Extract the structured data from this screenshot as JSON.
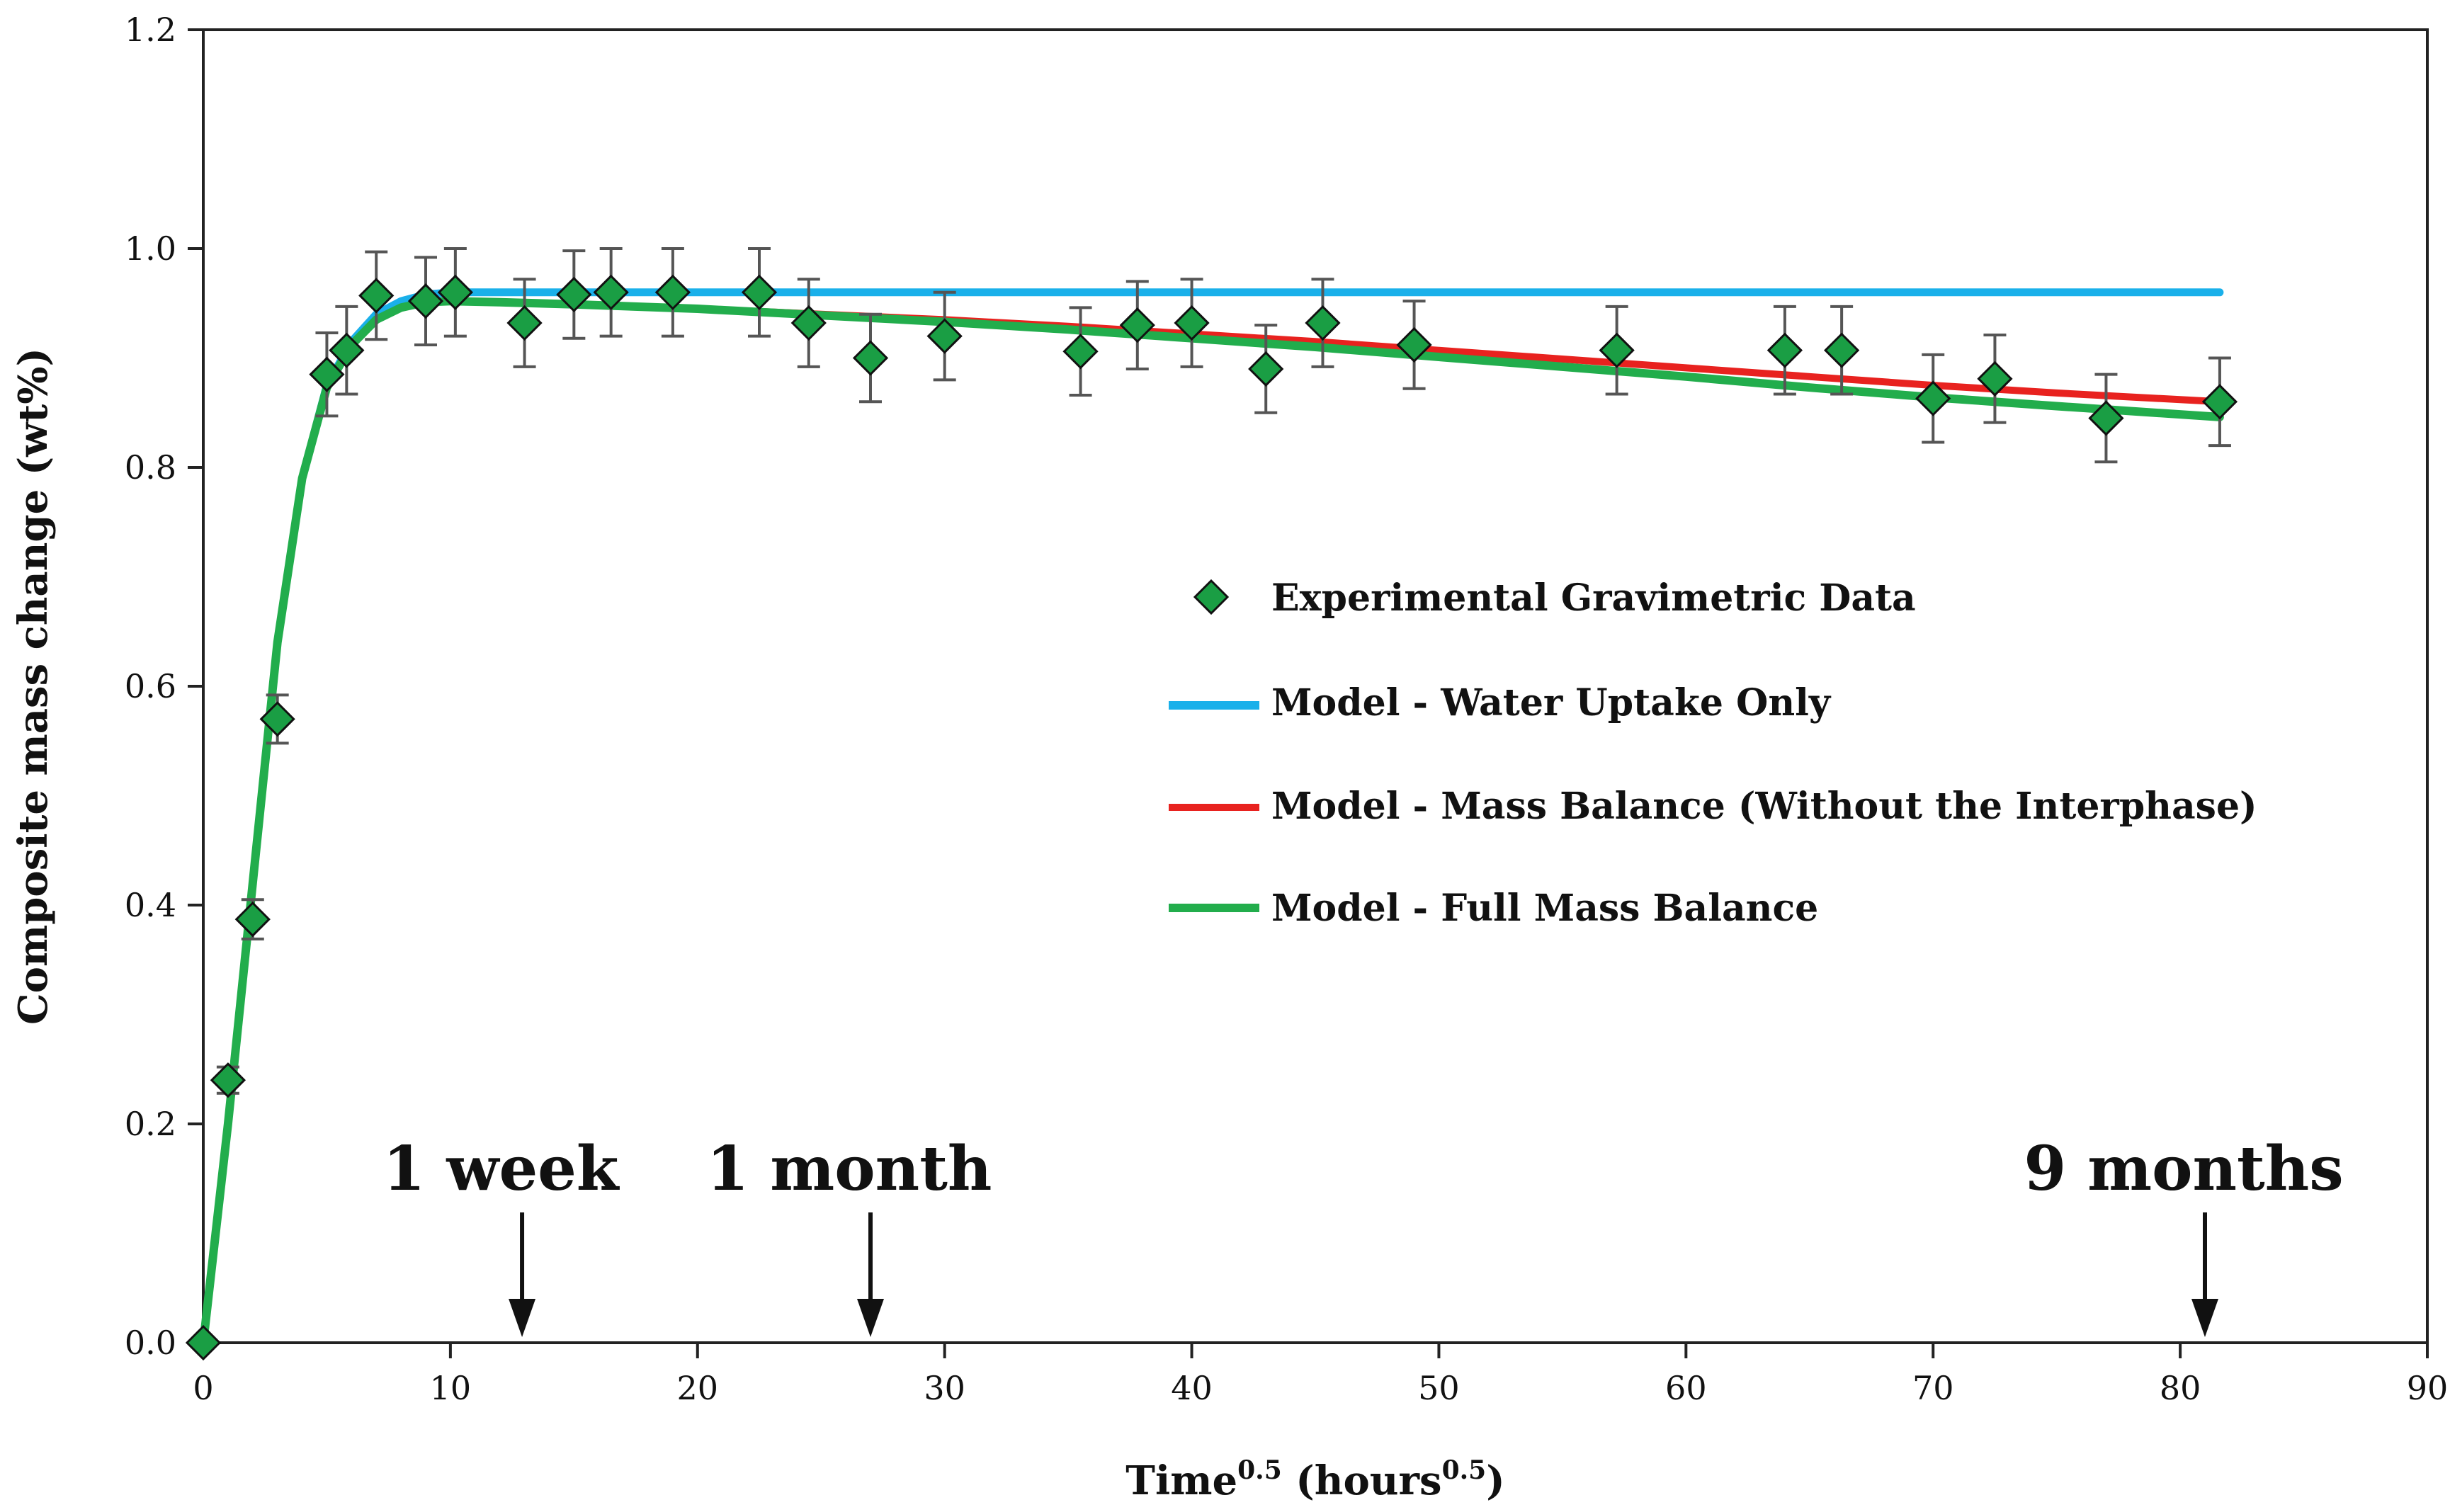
{
  "chart_data": {
    "type": "scatter",
    "xlabel": {
      "main": "Time",
      "sup": "0.5",
      "mid": " (hours",
      "sup2": "0.5",
      "end": ")"
    },
    "ylabel": "Composite mass change (wt%)",
    "xlim": [
      0,
      90
    ],
    "ylim": [
      0,
      1.2
    ],
    "x_ticks": [
      0,
      10,
      20,
      30,
      40,
      50,
      60,
      70,
      80,
      90
    ],
    "y_ticks": [
      "0.0",
      "0.2",
      "0.4",
      "0.6",
      "0.8",
      "1.0",
      "1.2"
    ],
    "grid": false,
    "legend_position": "center-right",
    "series": [
      {
        "name": "Experimental Gravimetric Data",
        "kind": "points",
        "color": "#1a9e44",
        "x": [
          0,
          1,
          2,
          3,
          5,
          5.8,
          7,
          9,
          10.2,
          13,
          15,
          16.5,
          19,
          22.5,
          24.5,
          27,
          30,
          35.5,
          37.8,
          40,
          43,
          45.3,
          49,
          57.2,
          64,
          66.3,
          70,
          72.5,
          77,
          81.6
        ],
        "y": [
          0.0,
          0.24,
          0.387,
          0.57,
          0.885,
          0.907,
          0.957,
          0.952,
          0.96,
          0.932,
          0.958,
          0.96,
          0.96,
          0.96,
          0.932,
          0.9,
          0.92,
          0.906,
          0.93,
          0.932,
          0.89,
          0.932,
          0.912,
          0.907,
          0.907,
          0.907,
          0.863,
          0.881,
          0.845,
          0.86
        ],
        "err": [
          0,
          0.012,
          0.018,
          0.022,
          0.038,
          0.04,
          0.04,
          0.04,
          0.04,
          0.04,
          0.04,
          0.04,
          0.04,
          0.04,
          0.04,
          0.04,
          0.04,
          0.04,
          0.04,
          0.04,
          0.04,
          0.04,
          0.04,
          0.04,
          0.04,
          0.04,
          0.04,
          0.04,
          0.04,
          0.04
        ]
      },
      {
        "name": "Model - Water Uptake Only",
        "kind": "line",
        "color": "#1ab0ea",
        "x": [
          0,
          1,
          2,
          3,
          4,
          5,
          6,
          7,
          8,
          9,
          10,
          11,
          15,
          20,
          30,
          40,
          50,
          60,
          70,
          81.6
        ],
        "y": [
          0.0,
          0.2,
          0.42,
          0.64,
          0.79,
          0.875,
          0.915,
          0.94,
          0.952,
          0.958,
          0.96,
          0.96,
          0.96,
          0.96,
          0.96,
          0.96,
          0.96,
          0.96,
          0.96,
          0.96
        ]
      },
      {
        "name": "Model - Mass Balance (Without the Interphase)",
        "kind": "line",
        "color": "#e8221f",
        "x": [
          0,
          1,
          2,
          3,
          4,
          5,
          6,
          7,
          8,
          9,
          10,
          12,
          15,
          20,
          25,
          30,
          35,
          40,
          45,
          50,
          55,
          60,
          65,
          70,
          75,
          81.6
        ],
        "y": [
          0.0,
          0.2,
          0.42,
          0.64,
          0.79,
          0.873,
          0.912,
          0.935,
          0.946,
          0.951,
          0.952,
          0.951,
          0.949,
          0.945,
          0.94,
          0.935,
          0.929,
          0.922,
          0.915,
          0.907,
          0.899,
          0.891,
          0.883,
          0.875,
          0.868,
          0.86
        ]
      },
      {
        "name": "Model - Full Mass Balance",
        "kind": "line",
        "color": "#22ad4c",
        "x": [
          0,
          1,
          2,
          3,
          4,
          5,
          6,
          7,
          8,
          9,
          10,
          12,
          15,
          20,
          25,
          30,
          35,
          40,
          45,
          50,
          55,
          60,
          65,
          70,
          75,
          81.6
        ],
        "y": [
          0.0,
          0.2,
          0.42,
          0.64,
          0.79,
          0.873,
          0.912,
          0.935,
          0.946,
          0.951,
          0.952,
          0.951,
          0.949,
          0.945,
          0.939,
          0.933,
          0.926,
          0.918,
          0.91,
          0.901,
          0.892,
          0.883,
          0.873,
          0.864,
          0.856,
          0.846
        ]
      }
    ],
    "annotations": [
      {
        "text": "1 week",
        "x": 12.9
      },
      {
        "text": "1 month",
        "x": 27.0
      },
      {
        "text": "9 months",
        "x": 81.0
      }
    ]
  }
}
